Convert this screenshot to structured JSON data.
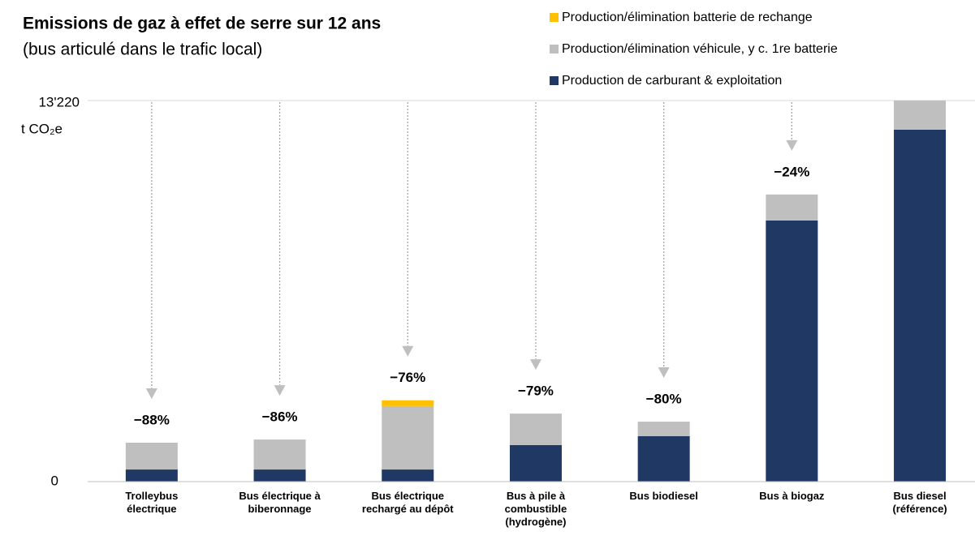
{
  "chart_data": {
    "type": "stacked_bar",
    "title": "Emissions de gaz à effet de serre sur 12 ans",
    "subtitle": "(bus articulé dans le trafic local)",
    "y_unit": "t CO₂e",
    "categories": [
      "Trolleybus électrique",
      "Bus électrique à biberonnage",
      "Bus électrique rechargé au dépôt",
      "Bus à pile à combustible (hydrogène)",
      "Bus biodiesel",
      "Bus à biogaz",
      "Bus diesel (référence)"
    ],
    "series": [
      {
        "name": "Production de carburant & exploitation",
        "color": "#203864",
        "values": [
          420,
          420,
          420,
          1270,
          1580,
          9060,
          12210
        ]
      },
      {
        "name": "Production/élimination véhicule, y c. 1re batterie",
        "color": "#bfbfbf",
        "values": [
          930,
          1040,
          2200,
          1090,
          500,
          900,
          1010
        ]
      },
      {
        "name": "Production/élimination batterie de rechange",
        "color": "#ffc000",
        "values": [
          0,
          0,
          200,
          0,
          0,
          0,
          0
        ]
      }
    ],
    "annotations": [
      "−88%",
      "−86%",
      "−76%",
      "−79%",
      "−80%",
      "−24%"
    ],
    "ylim": [
      0,
      13220
    ],
    "yticks": [
      0,
      {
        "value": 13220,
        "label": "13'220"
      }
    ]
  }
}
